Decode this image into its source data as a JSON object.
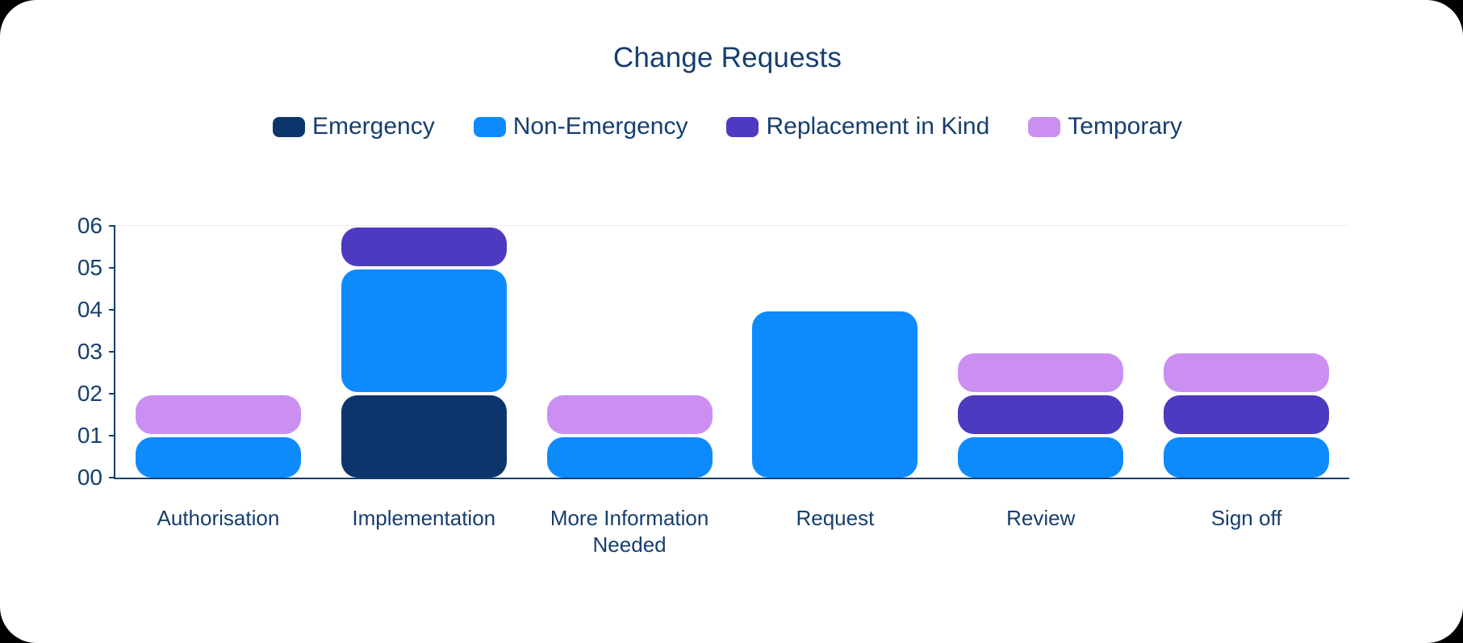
{
  "title": "Change Requests",
  "page": {
    "background_color": "#000000",
    "card_color": "#ffffff",
    "text_color": "#163e70",
    "axis_color": "#163e70",
    "gridline_color": "#ededed"
  },
  "chart_data": {
    "type": "bar",
    "stacked": true,
    "title": "Change Requests",
    "legend_position": "top",
    "grid": "top line only",
    "categories": [
      "Authorisation",
      "Implementation",
      "More Information Needed",
      "Request",
      "Review",
      "Sign off"
    ],
    "series": [
      {
        "name": "Emergency",
        "color": "#0c366b",
        "values": [
          0,
          2,
          0,
          0,
          0,
          0
        ]
      },
      {
        "name": "Non-Emergency",
        "color": "#0d8bfd",
        "values": [
          1,
          3,
          1,
          4,
          1,
          1
        ]
      },
      {
        "name": "Replacement in Kind",
        "color": "#4c3ac1",
        "values": [
          0,
          1,
          0,
          0,
          1,
          1
        ]
      },
      {
        "name": "Temporary",
        "color": "#cb8ff2",
        "values": [
          1,
          0,
          1,
          0,
          1,
          1
        ]
      }
    ],
    "xlabel": "",
    "ylabel": "",
    "ylim": [
      0,
      6
    ],
    "y_ticks": [
      "00",
      "01",
      "02",
      "03",
      "04",
      "05",
      "06"
    ]
  }
}
